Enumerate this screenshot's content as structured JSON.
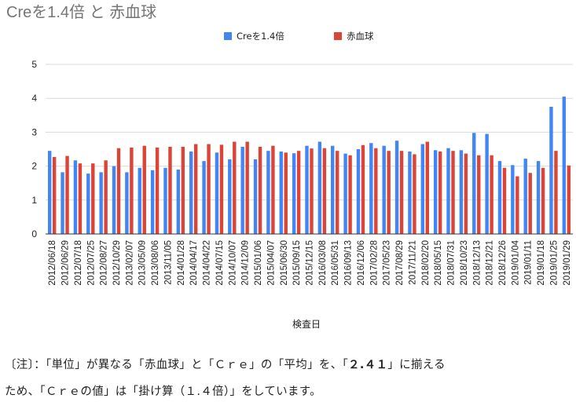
{
  "chart_data": {
    "type": "bar",
    "title": "Creを1.4倍 と 赤血球",
    "xlabel": "検査日",
    "ylabel": "",
    "ylim": [
      0,
      5
    ],
    "yticks": [
      0,
      1,
      2,
      3,
      4,
      5
    ],
    "grid": true,
    "legend_position": "top",
    "categories": [
      "2012/06/18",
      "2012/06/29",
      "2012/07/18",
      "2012/07/25",
      "2012/08/27",
      "2012/10/29",
      "2013/02/07",
      "2013/05/09",
      "2013/08/06",
      "2013/11/05",
      "2014/01/28",
      "2014/04/17",
      "2014/04/22",
      "2014/07/15",
      "2014/10/07",
      "2014/12/09",
      "2015/01/06",
      "2015/04/07",
      "2015/06/30",
      "2015/09/15",
      "2015/12/15",
      "2016/03/08",
      "2016/05/31",
      "2016/09/13",
      "2016/12/06",
      "2017/02/28",
      "2017/05/23",
      "2017/08/29",
      "2017/11/21",
      "2018/02/20",
      "2018/05/15",
      "2018/07/31",
      "2018/10/23",
      "2018/12/13",
      "2018/12/21",
      "2018/12/26",
      "2019/01/04",
      "2019/01/11",
      "2019/01/18",
      "2019/01/25",
      "2019/01/29"
    ],
    "series": [
      {
        "name": "Creを1.4倍",
        "color": "#4285f4",
        "values": [
          2.45,
          1.82,
          2.17,
          1.78,
          1.82,
          2.0,
          1.82,
          1.95,
          1.88,
          1.95,
          1.9,
          2.43,
          2.15,
          2.4,
          2.2,
          2.57,
          2.2,
          2.45,
          2.43,
          2.38,
          2.6,
          2.72,
          2.6,
          2.37,
          2.5,
          2.68,
          2.6,
          2.75,
          2.43,
          2.65,
          2.47,
          2.53,
          2.47,
          2.98,
          2.95,
          2.15,
          2.03,
          2.22,
          2.15,
          3.75,
          4.05
        ]
      },
      {
        "name": "赤血球",
        "color": "#db4437",
        "values": [
          2.27,
          2.3,
          2.08,
          2.08,
          2.17,
          2.53,
          2.55,
          2.6,
          2.55,
          2.57,
          2.57,
          2.65,
          2.65,
          2.63,
          2.72,
          2.72,
          2.57,
          2.6,
          2.4,
          2.45,
          2.52,
          2.53,
          2.45,
          2.32,
          2.62,
          2.53,
          2.45,
          2.45,
          2.35,
          2.72,
          2.43,
          2.45,
          2.37,
          2.32,
          2.32,
          1.95,
          1.7,
          1.8,
          1.95,
          2.45,
          2.02
        ]
      }
    ]
  },
  "note": {
    "line1_prefix": "〔注〕：「単位」が異なる「赤血球」と「Ｃｒｅ」の「平均」を、「",
    "line1_bold": "２.４１",
    "line1_suffix": "」に揃える",
    "line2": "ため、「Ｃｒｅの値」は「掛け算（１.４倍）」をしています。"
  }
}
